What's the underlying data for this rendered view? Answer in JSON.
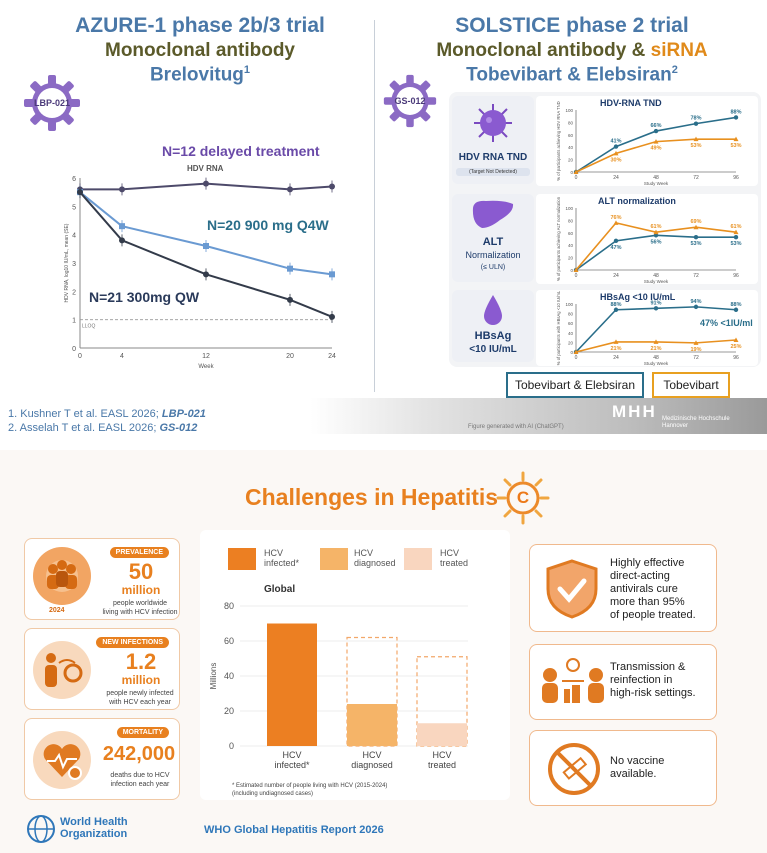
{
  "top_left": {
    "title": "AZURE-1 phase 2b/3 trial",
    "subtitle": "Monoclonal antibody",
    "drug": "Brelovitug",
    "drug_sup": "1",
    "badge": "LBP-021",
    "chart_title": "HDV RNA",
    "ylabel": "HDV RNA, log10 IU/mL, mean (SE)",
    "xlabel": "Week",
    "lloq": "LLOQ",
    "label_delayed": "N=12 delayed treatment",
    "label_900": "N=20 900 mg Q4W",
    "label_300": "N=21 300mg QW"
  },
  "top_right": {
    "title": "SOLSTICE phase 2 trial",
    "subtitle_a": "Monoclonal antibody",
    "subtitle_amp": " & ",
    "subtitle_b": "siRNA",
    "drug": "Tobevibart & Elebsiran",
    "drug_sup": "2",
    "badge": "GS-012",
    "cells": [
      {
        "label": "HDV RNA TND",
        "sub": "(Target Not Detected)"
      },
      {
        "label": "ALT",
        "label2": "Normalization",
        "sub": "(≤ ULN)"
      },
      {
        "label": "HBsAg",
        "label2": "<10 IU/mL"
      }
    ],
    "mini_charts": [
      {
        "title": "HDV-RNA TND",
        "ylabel": "% of participants achieving HDV RNA TND"
      },
      {
        "title": "ALT normalization",
        "ylabel": "% of participants achieving ALT normalization"
      },
      {
        "title": "HBsAg <10 IU/mL",
        "ylabel": "% of participants with HBsAg <10 IU/mL",
        "note": "47% <1IU/ml"
      }
    ],
    "mini_xlabel": "Study Week",
    "legend_combo": "Tobevibart & Elebsiran",
    "legend_single": "Tobevibart"
  },
  "refs": [
    {
      "text": "1. Kushner T et al. EASL 2026; ",
      "code": "LBP-021"
    },
    {
      "text": "2. Asselah T et al. EASL 2026; ",
      "code": "GS-012"
    }
  ],
  "footer_band": {
    "ai_note": "Figure generated with AI (ChatGPT)",
    "logo": "MHH",
    "institution_1": "Medizinische Hochschule",
    "institution_2": "Hannover"
  },
  "bottom": {
    "title": "Challenges in Hepatitis",
    "title_letter": "C",
    "stats": [
      {
        "pill": "PREVALENCE",
        "big": "50",
        "big2": "million",
        "line1": "people worldwide",
        "line2": "living with HCV infection",
        "year": "2024"
      },
      {
        "pill": "NEW INFECTIONS",
        "big": "1.2",
        "big2": "million",
        "line1": "people newly infected",
        "line2": "with HCV each year"
      },
      {
        "pill": "MORTALITY",
        "big": "242,000",
        "line1": "deaths due to HCV",
        "line2": "infection each year"
      }
    ],
    "legend": [
      {
        "label1": "HCV",
        "label2": "infected*"
      },
      {
        "label1": "HCV",
        "label2": "diagnosed"
      },
      {
        "label1": "HCV",
        "label2": "treated"
      }
    ],
    "bar_title": "Global",
    "bar_ylabel": "Millions",
    "footnote": "* Estimated number of people living with HCV (2015-2024)",
    "footnote2": "(including undiagnosed cases)",
    "challenges": [
      {
        "text": "Highly effective direct-acting antivirals cure more than 95% of people treated.",
        "lines": [
          "Highly effective",
          "direct-acting",
          "antivirals cure",
          "more than 95%",
          "of people treated."
        ]
      },
      {
        "text": "Transmission & reinfection in high-risk settings.",
        "lines": [
          "Transmission &",
          "reinfection in",
          "high-risk settings."
        ]
      },
      {
        "text": "No vaccine available.",
        "lines": [
          "No vaccine",
          "available."
        ]
      }
    ],
    "who_1": "World Health",
    "who_2": "Organization",
    "report": "WHO Global Hepatitis Report 2026"
  },
  "colors": {
    "blue_title": "#4a78a8",
    "olive": "#5b5a2a",
    "orange": "#e8801f",
    "teal": "#2a6e8a",
    "purple": "#6a4aa8"
  },
  "chart_data": [
    {
      "type": "line",
      "title": "HDV RNA",
      "xlabel": "Week",
      "ylabel": "HDV RNA, log10 IU/mL, mean (SE)",
      "x": [
        0,
        4,
        12,
        20,
        24
      ],
      "ylim": [
        0,
        6
      ],
      "x_ticks": [
        0,
        4,
        12,
        20,
        24
      ],
      "y_ticks": [
        0,
        1,
        2,
        3,
        4,
        5,
        6
      ],
      "series": [
        {
          "name": "N=12 delayed treatment",
          "values": [
            5.6,
            5.6,
            5.8,
            5.6,
            5.7
          ],
          "color": "#4d4a6a"
        },
        {
          "name": "N=20 900 mg Q4W",
          "values": [
            5.5,
            4.3,
            3.6,
            2.8,
            2.6
          ],
          "color": "#6a9ad2"
        },
        {
          "name": "N=21 300mg QW",
          "values": [
            5.5,
            3.8,
            2.6,
            1.7,
            1.1
          ],
          "color": "#333b4a"
        }
      ]
    },
    {
      "type": "line",
      "title": "HDV-RNA TND",
      "xlabel": "Study Week",
      "x": [
        0,
        24,
        48,
        72,
        96
      ],
      "ylim": [
        0,
        100
      ],
      "series": [
        {
          "name": "Tobevibart & Elebsiran",
          "values": [
            0,
            41,
            66,
            78,
            88
          ],
          "labels": [
            "",
            "41%",
            "66%",
            "78%",
            "88%"
          ],
          "color": "#2a6e8a"
        },
        {
          "name": "Tobevibart",
          "values": [
            0,
            30,
            49,
            53,
            53
          ],
          "labels": [
            "",
            "30%",
            "49%",
            "53%",
            "53%"
          ],
          "color": "#e8901f"
        }
      ]
    },
    {
      "type": "line",
      "title": "ALT normalization",
      "xlabel": "Study Week",
      "x": [
        0,
        24,
        48,
        72,
        96
      ],
      "ylim": [
        0,
        100
      ],
      "series": [
        {
          "name": "Tobevibart & Elebsiran",
          "values": [
            0,
            47,
            56,
            53,
            53
          ],
          "labels": [
            "",
            "47%",
            "56%",
            "53%",
            "53%"
          ],
          "color": "#2a6e8a"
        },
        {
          "name": "Tobevibart",
          "values": [
            0,
            76,
            61,
            69,
            61
          ],
          "labels": [
            "",
            "76%",
            "61%",
            "69%",
            "61%"
          ],
          "color": "#e8901f"
        }
      ]
    },
    {
      "type": "line",
      "title": "HBsAg <10 IU/mL",
      "xlabel": "Study Week",
      "x": [
        0,
        24,
        48,
        72,
        96
      ],
      "ylim": [
        0,
        100
      ],
      "series": [
        {
          "name": "Tobevibart & Elebsiran",
          "values": [
            0,
            88,
            91,
            94,
            88
          ],
          "labels": [
            "",
            "88%",
            "91%",
            "94%",
            "88%"
          ],
          "color": "#2a6e8a"
        },
        {
          "name": "Tobevibart",
          "values": [
            0,
            21,
            21,
            19,
            25
          ],
          "labels": [
            "",
            "21%",
            "21%",
            "19%",
            "25%"
          ],
          "color": "#e8901f"
        }
      ]
    },
    {
      "type": "bar",
      "title": "Global",
      "ylabel": "Millions",
      "categories": [
        "HCV infected*",
        "HCV diagnosed",
        "HCV treated"
      ],
      "values": [
        70,
        24,
        13
      ],
      "outline_values": [
        70,
        62,
        51
      ],
      "ylim": [
        0,
        80
      ],
      "y_ticks": [
        0,
        20,
        40,
        60,
        80
      ],
      "colors": [
        "#ec7f22",
        "#f5b468",
        "#f9d6bf"
      ]
    }
  ]
}
